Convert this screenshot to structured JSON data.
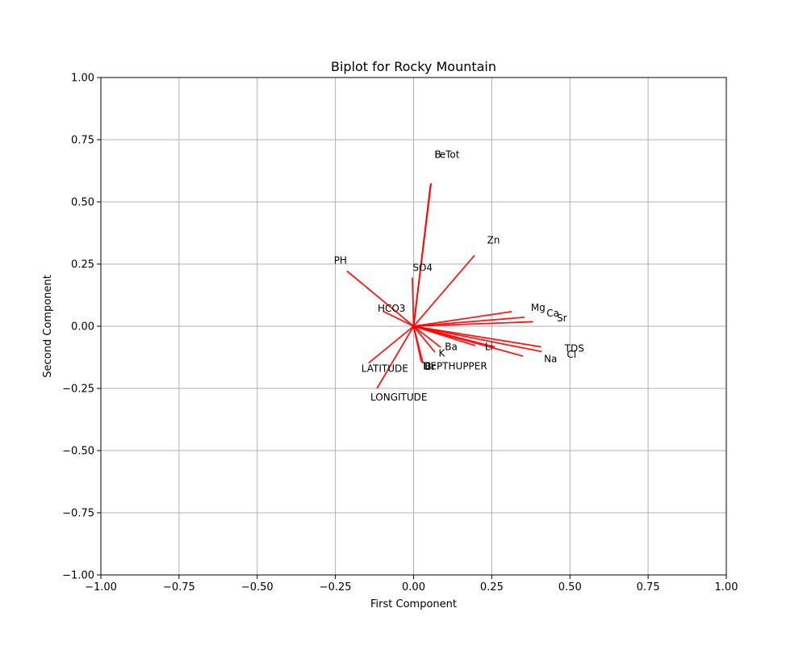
{
  "chart_data": {
    "type": "biplot",
    "title": "Biplot for Rocky Mountain",
    "xlabel": "First Component",
    "ylabel": "Second Component",
    "xlim": [
      -1.0,
      1.0
    ],
    "ylim": [
      -1.0,
      1.0
    ],
    "xticks": [
      -1.0,
      -0.75,
      -0.5,
      -0.25,
      0.0,
      0.25,
      0.5,
      0.75,
      1.0
    ],
    "yticks": [
      -1.0,
      -0.75,
      -0.5,
      -0.25,
      0.0,
      0.25,
      0.5,
      0.75,
      1.0
    ],
    "xtick_labels": [
      "−1.00",
      "−0.75",
      "−0.50",
      "−0.25",
      "0.00",
      "0.25",
      "0.50",
      "0.75",
      "1.00"
    ],
    "ytick_labels": [
      "−1.00",
      "−0.75",
      "−0.50",
      "−0.25",
      "0.00",
      "0.25",
      "0.50",
      "0.75",
      "1.00"
    ],
    "grid": true,
    "vector_color": "#ff0000",
    "vectors": [
      {
        "name": "B",
        "x": 0.054,
        "y": 0.57
      },
      {
        "name": "FeTot",
        "x": 0.056,
        "y": 0.575
      },
      {
        "name": "Zn",
        "x": 0.195,
        "y": 0.285
      },
      {
        "name": "PH",
        "x": -0.213,
        "y": 0.222
      },
      {
        "name": "SO4",
        "x": -0.004,
        "y": 0.196
      },
      {
        "name": "HCO3",
        "x": -0.097,
        "y": 0.06
      },
      {
        "name": "Mg",
        "x": 0.314,
        "y": 0.059
      },
      {
        "name": "Ca",
        "x": 0.355,
        "y": 0.036
      },
      {
        "name": "Sr",
        "x": 0.382,
        "y": 0.018
      },
      {
        "name": "TDS",
        "x": 0.408,
        "y": -0.083
      },
      {
        "name": "Cl",
        "x": 0.41,
        "y": -0.102
      },
      {
        "name": "Na",
        "x": 0.35,
        "y": -0.12
      },
      {
        "name": "Li",
        "x": 0.26,
        "y": -0.083
      },
      {
        "name": "Ba",
        "x": 0.087,
        "y": -0.085
      },
      {
        "name": "K",
        "x": 0.068,
        "y": -0.104
      },
      {
        "name": "DEPTHUPPER",
        "x": 0.197,
        "y": -0.078
      },
      {
        "name": "Br",
        "x": 0.03,
        "y": -0.148
      },
      {
        "name": "Ti",
        "x": 0.025,
        "y": -0.145
      },
      {
        "name": "LATITUDE",
        "x": -0.144,
        "y": -0.148
      },
      {
        "name": "LONGITUDE",
        "x": -0.117,
        "y": -0.25
      }
    ],
    "labels": [
      {
        "text": "B",
        "x": 0.067,
        "y": 0.69
      },
      {
        "text": "FeTot",
        "x": 0.067,
        "y": 0.69
      },
      {
        "text": "Zn",
        "x": 0.235,
        "y": 0.345
      },
      {
        "text": "PH",
        "x": -0.255,
        "y": 0.265
      },
      {
        "text": "SO4",
        "x": -0.003,
        "y": 0.235
      },
      {
        "text": "HCO3",
        "x": -0.115,
        "y": 0.072
      },
      {
        "text": "Mg",
        "x": 0.375,
        "y": 0.075
      },
      {
        "text": "Ca",
        "x": 0.425,
        "y": 0.052
      },
      {
        "text": "Sr",
        "x": 0.458,
        "y": 0.032
      },
      {
        "text": "TDS",
        "x": 0.483,
        "y": -0.09
      },
      {
        "text": "Cl",
        "x": 0.49,
        "y": -0.113
      },
      {
        "text": "Na",
        "x": 0.417,
        "y": -0.132
      },
      {
        "text": "Li",
        "x": 0.228,
        "y": -0.083
      },
      {
        "text": "Ba",
        "x": 0.1,
        "y": -0.083
      },
      {
        "text": "K",
        "x": 0.08,
        "y": -0.108
      },
      {
        "text": "DEPTHUPPER",
        "x": 0.03,
        "y": -0.16
      },
      {
        "text": "Br",
        "x": 0.036,
        "y": -0.163
      },
      {
        "text": "Ti",
        "x": 0.027,
        "y": -0.16
      },
      {
        "text": "LATITUDE",
        "x": -0.167,
        "y": -0.17
      },
      {
        "text": "LONGITUDE",
        "x": -0.138,
        "y": -0.285
      }
    ]
  }
}
